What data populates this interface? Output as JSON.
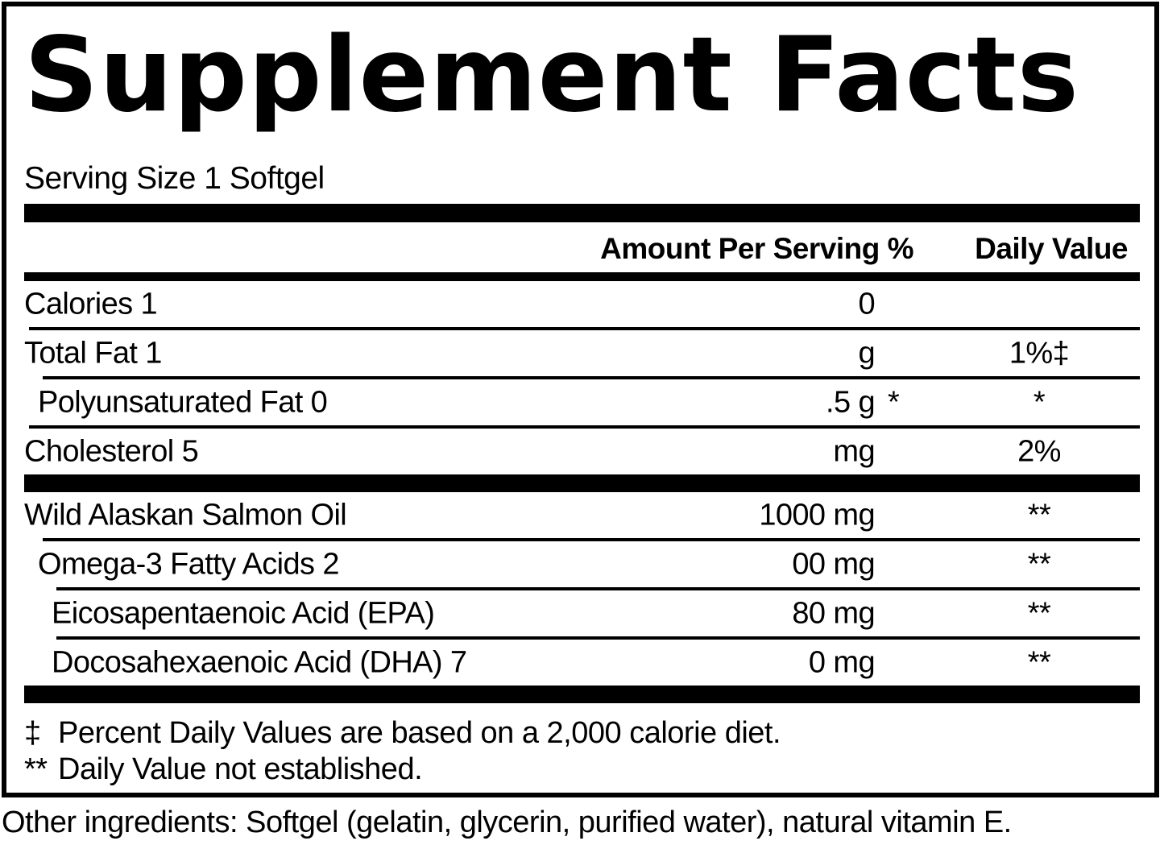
{
  "title": "Supplement Facts",
  "serving_size": "Serving Size 1 Softgel",
  "columns": {
    "amount_header": "Amount Per Serving %",
    "dv_header": "Daily Value"
  },
  "rows": [
    {
      "name": "Calories 1",
      "amount": "0",
      "star": "",
      "dv": ""
    },
    {
      "name": "Total Fat 1",
      "amount": "g",
      "star": "",
      "dv": "1%‡"
    },
    {
      "name": "Polyunsaturated Fat 0",
      "amount": ".5 g",
      "star": "*",
      "dv": "*"
    },
    {
      "name": "Cholesterol 5",
      "amount": "mg",
      "star": "",
      "dv": "2%"
    },
    {
      "name": "Wild Alaskan Salmon Oil",
      "amount": "1000 mg",
      "star": "",
      "dv": "**"
    },
    {
      "name": "Omega-3 Fatty Acids 2",
      "amount": "00 mg",
      "star": "",
      "dv": "**"
    },
    {
      "name": "Eicosapentaenoic Acid (EPA)",
      "amount": "80 mg",
      "star": "",
      "dv": "**"
    },
    {
      "name": "Docosahexaenoic Acid (DHA) 7",
      "amount": "0 mg",
      "star": "",
      "dv": "**"
    }
  ],
  "footnotes": [
    {
      "marker": "‡",
      "text": "Percent Daily Values are based on a 2,000 calorie diet."
    },
    {
      "marker": "**",
      "text": "Daily Value not established."
    }
  ],
  "other_ingredients": "Other ingredients: Softgel (gelatin, glycerin, purified water), natural vitamin E.",
  "colors": {
    "ink": "#000000",
    "background": "#ffffff"
  }
}
